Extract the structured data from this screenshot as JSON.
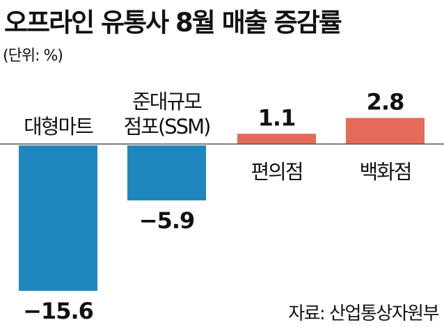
{
  "chart_data": {
    "type": "bar",
    "title": "오프라인 유통사 8월 매출 증감률",
    "unit_label": "(단위: %)",
    "source": "자료: 산업통상자원부",
    "categories": [
      [
        "대형마트"
      ],
      [
        "준대규모",
        "점포(SSM)"
      ],
      [
        "편의점"
      ],
      [
        "백화점"
      ]
    ],
    "values": [
      -15.6,
      -5.9,
      1.1,
      2.8
    ],
    "value_labels": [
      "−15.6",
      "−5.9",
      "1.1",
      "2.8"
    ],
    "xlabel": "",
    "ylabel": "",
    "ylim": [
      -15.6,
      2.8
    ],
    "grid": false,
    "colors": {
      "negative": "#1F87BE",
      "positive": "#E46B57",
      "axis": "#555555"
    }
  }
}
